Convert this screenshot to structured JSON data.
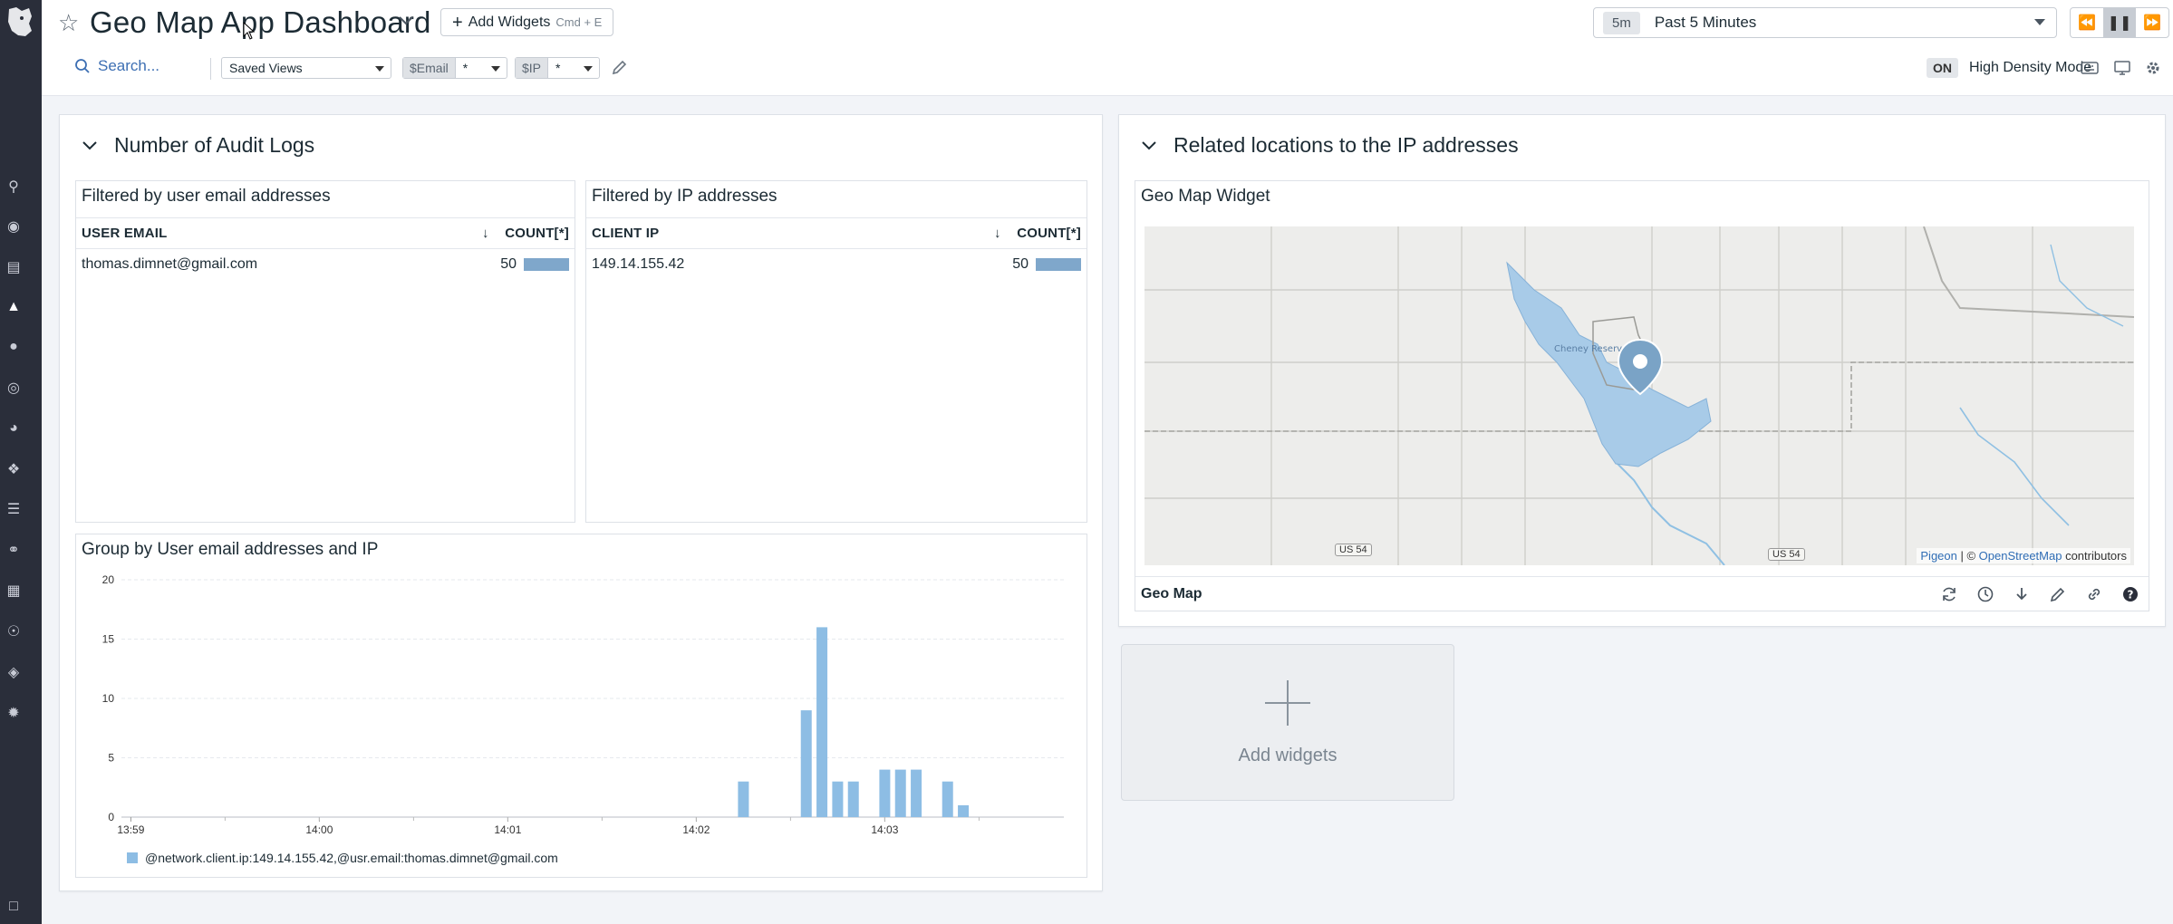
{
  "header": {
    "title": "Geo Map App Dashboard",
    "add_widgets_label": "Add Widgets",
    "add_widgets_shortcut": "Cmd + E",
    "time_chip": "5m",
    "time_label": "Past 5 Minutes"
  },
  "toolbar": {
    "search_label": "Search...",
    "saved_views_label": "Saved Views",
    "vars": [
      {
        "key": "$Email",
        "value": "*"
      },
      {
        "key": "$IP",
        "value": "*"
      }
    ],
    "hd_state": "ON",
    "hd_label": "High Density Mode"
  },
  "groups": {
    "audit": {
      "title": "Number of Audit Logs"
    },
    "locations": {
      "title": "Related locations to the IP addresses"
    }
  },
  "widgets": {
    "email_list": {
      "title": "Filtered by user email addresses",
      "col1": "USER EMAIL",
      "col2": "COUNT[*]",
      "rows": [
        {
          "label": "thomas.dimnet@gmail.com",
          "value": "50"
        }
      ]
    },
    "ip_list": {
      "title": "Filtered by IP addresses",
      "col1": "CLIENT IP",
      "col2": "COUNT[*]",
      "rows": [
        {
          "label": "149.14.155.42",
          "value": "50"
        }
      ]
    },
    "timeseries": {
      "title": "Group by User email addresses and IP"
    },
    "geomap": {
      "title": "Geo Map Widget",
      "footer_name": "Geo Map",
      "attrib_pigeon": "Pigeon",
      "attrib_sep": " | © ",
      "attrib_osm": "OpenStreetMap",
      "attrib_tail": " contributors",
      "road_labels": [
        "US 54",
        "US 54"
      ],
      "lake_label": "Cheney Reservoir"
    }
  },
  "add_tile": {
    "label": "Add widgets"
  },
  "colors": {
    "bar": "#8dbde4",
    "accent": "#3d6fb3",
    "water": "#a8cbe8"
  },
  "chart_data": {
    "type": "bar",
    "title": "Group by User email addresses and IP",
    "xlabel": "",
    "ylabel": "",
    "ylim": [
      0,
      20
    ],
    "yticks": [
      0,
      5,
      10,
      15,
      20
    ],
    "xticks": [
      "13:59",
      "14:00",
      "14:01",
      "14:02",
      "14:03"
    ],
    "x_range_minutes": [
      13.98,
      14.04
    ],
    "series": [
      {
        "name": "@network.client.ip:149.14.155.42,@usr.email:thomas.dimnet@gmail.com",
        "points": [
          {
            "t": "14:02:15",
            "v": 3
          },
          {
            "t": "14:02:35",
            "v": 9
          },
          {
            "t": "14:02:40",
            "v": 16
          },
          {
            "t": "14:02:45",
            "v": 3
          },
          {
            "t": "14:02:50",
            "v": 3
          },
          {
            "t": "14:03:00",
            "v": 4
          },
          {
            "t": "14:03:05",
            "v": 4
          },
          {
            "t": "14:03:10",
            "v": 4
          },
          {
            "t": "14:03:20",
            "v": 3
          },
          {
            "t": "14:03:25",
            "v": 1
          }
        ]
      }
    ]
  }
}
